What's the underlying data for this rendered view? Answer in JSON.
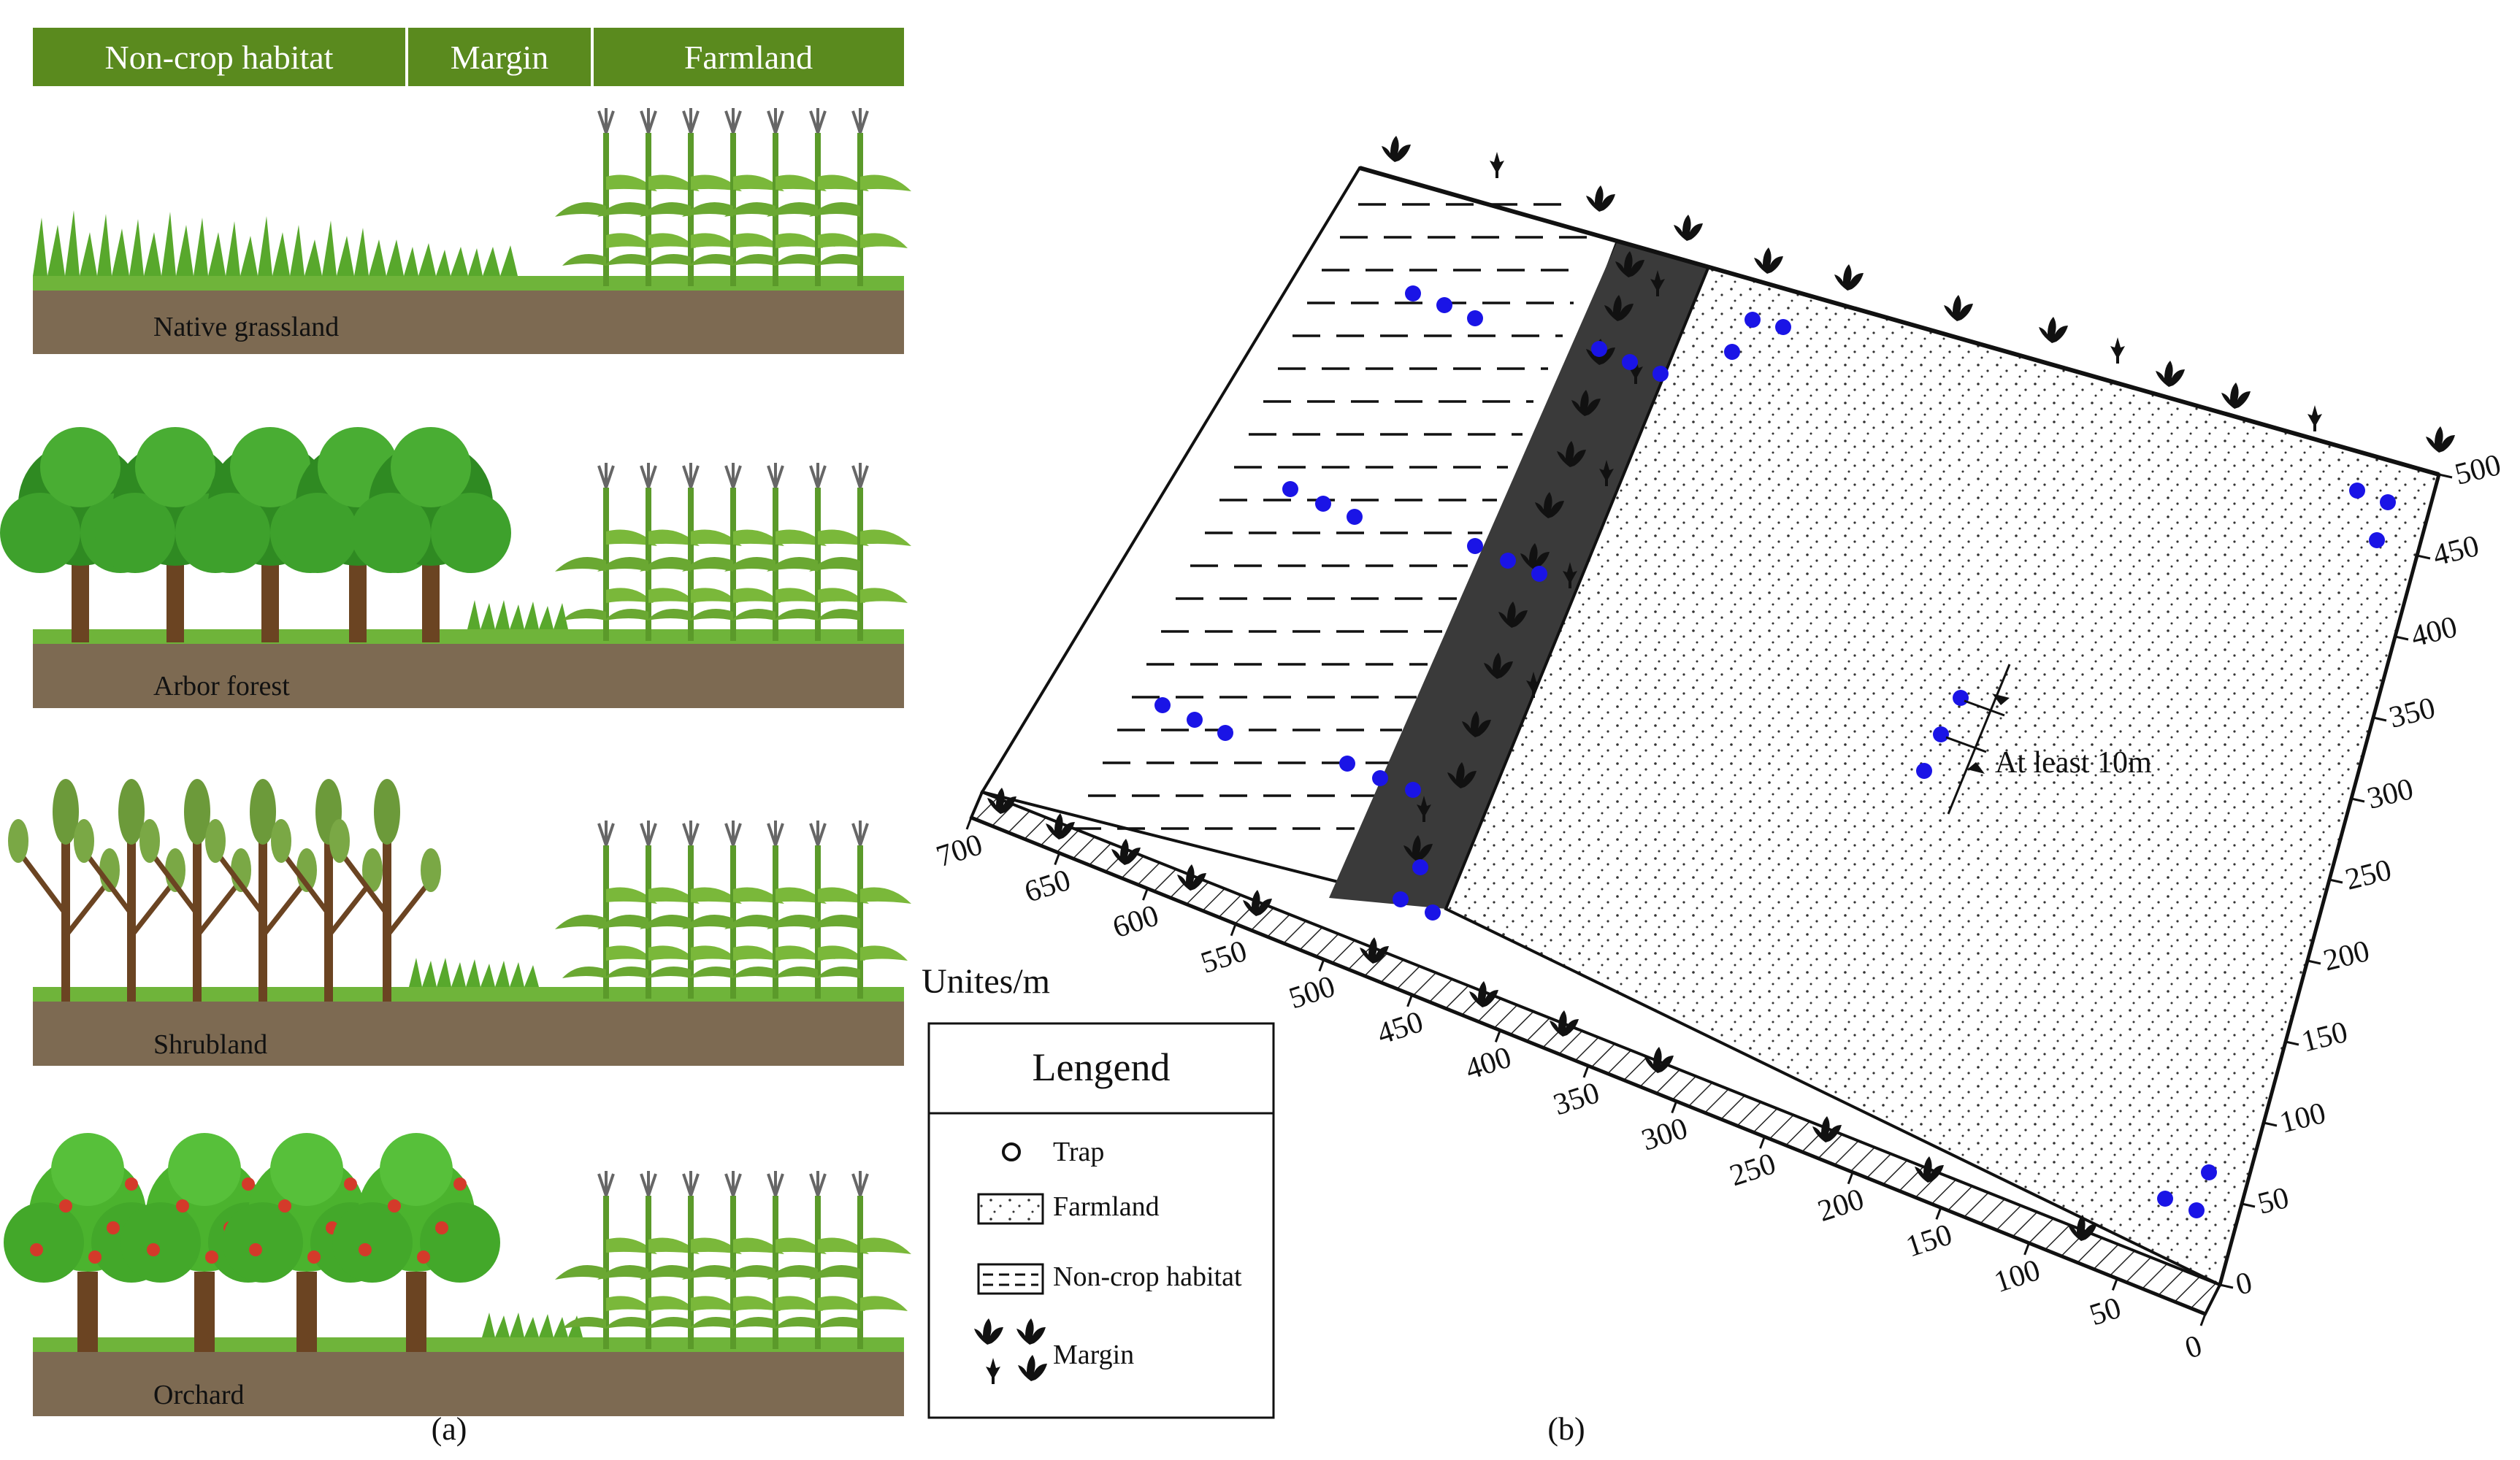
{
  "panel_a": {
    "headers": [
      "Non-crop habitat",
      "Margin",
      "Farmland"
    ],
    "scenes": [
      "Native grassland",
      "Arbor forest",
      "Shrubland",
      "Orchard"
    ],
    "label": "(a)"
  },
  "panel_b": {
    "label": "(b)",
    "units_label": "Unites/m",
    "x_ticks": [
      "700",
      "650",
      "600",
      "550",
      "500",
      "450",
      "400",
      "350",
      "300",
      "250",
      "200",
      "150",
      "100",
      "50",
      "0"
    ],
    "y_ticks": [
      "0",
      "50",
      "100",
      "150",
      "200",
      "250",
      "300",
      "350",
      "400",
      "450",
      "500"
    ],
    "annotation": "At  least 10m",
    "colors": {
      "trap": "#1a14e6",
      "header_green": "#5a8a1e"
    }
  },
  "legend": {
    "title": "Lengend",
    "items": [
      "Trap",
      "Farmland",
      "Non-crop habitat",
      "Margin"
    ]
  }
}
